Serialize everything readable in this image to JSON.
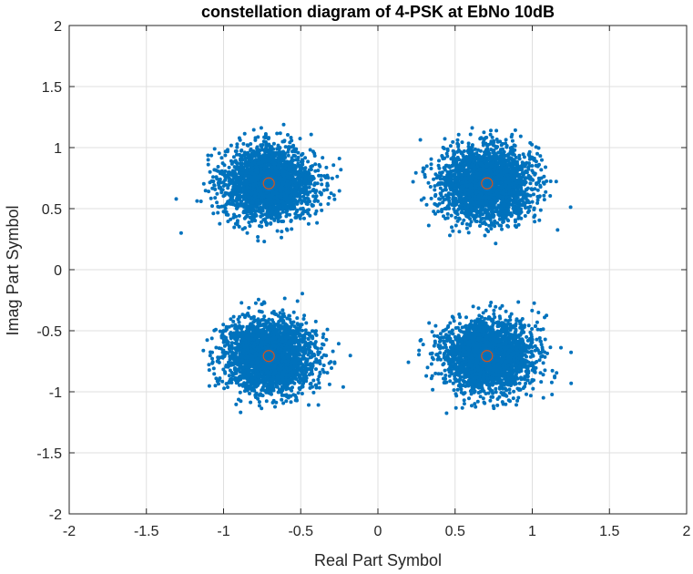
{
  "chart_data": {
    "type": "scatter",
    "title": "constellation diagram of 4-PSK at EbNo 10dB",
    "xlabel": "Real Part Symbol",
    "ylabel": "Imag Part Symbol",
    "xlim": [
      -2,
      2
    ],
    "ylim": [
      -2,
      2
    ],
    "xticks": [
      -2,
      -1.5,
      -1,
      -0.5,
      0,
      0.5,
      1,
      1.5,
      2
    ],
    "yticks": [
      -2,
      -1.5,
      -1,
      -0.5,
      0,
      0.5,
      1,
      1.5,
      2
    ],
    "xtick_labels": [
      "-2",
      "-1.5",
      "-1",
      "-0.5",
      "0",
      "0.5",
      "1",
      "1.5",
      "2"
    ],
    "ytick_labels": [
      "-2",
      "-1.5",
      "-1",
      "-0.5",
      "0",
      "0.5",
      "1",
      "1.5",
      "2"
    ],
    "grid": true,
    "legend": "none",
    "series": [
      {
        "kind": "received-symbols",
        "marker": "dot",
        "color": "#0072BD",
        "clusters": [
          {
            "center": [
              -0.707,
              0.707
            ],
            "spread_sd": 0.145,
            "approx_points": 2500
          },
          {
            "center": [
              0.707,
              0.707
            ],
            "spread_sd": 0.145,
            "approx_points": 2500
          },
          {
            "center": [
              -0.707,
              -0.707
            ],
            "spread_sd": 0.145,
            "approx_points": 2500
          },
          {
            "center": [
              0.707,
              -0.707
            ],
            "spread_sd": 0.145,
            "approx_points": 2500
          }
        ]
      },
      {
        "kind": "ideal-constellation",
        "marker": "circle",
        "color": "#D95319",
        "points": [
          [
            -0.707,
            0.707
          ],
          [
            0.707,
            0.707
          ],
          [
            -0.707,
            -0.707
          ],
          [
            0.707,
            -0.707
          ]
        ]
      }
    ]
  }
}
